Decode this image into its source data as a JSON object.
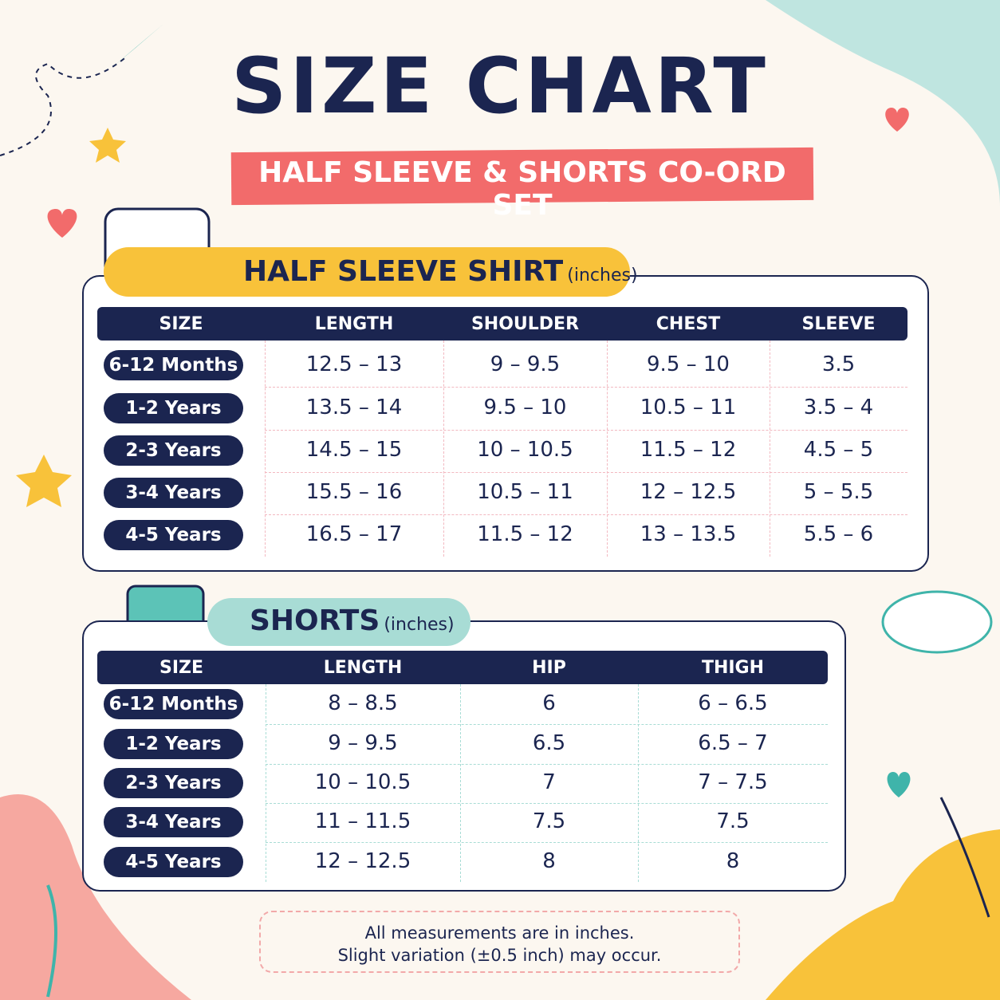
{
  "header": {
    "title": "SIZE CHART",
    "subtitle": "HALF SLEEVE & SHORTS CO-ORD SET"
  },
  "shirt_table": {
    "title": "HALF SLEEVE SHIRT",
    "unit": "(inches)",
    "columns": [
      "SIZE",
      "LENGTH",
      "SHOULDER",
      "CHEST",
      "SLEEVE"
    ],
    "rows": [
      [
        "6-12 Months",
        "12.5 – 13",
        "9 – 9.5",
        "9.5 – 10",
        "3.5"
      ],
      [
        "1-2 Years",
        "13.5 – 14",
        "9.5 – 10",
        "10.5 – 11",
        "3.5 – 4"
      ],
      [
        "2-3 Years",
        "14.5 – 15",
        "10 – 10.5",
        "11.5 – 12",
        "4.5 – 5"
      ],
      [
        "3-4 Years",
        "15.5 – 16",
        "10.5 – 11",
        "12 – 12.5",
        "5 – 5.5"
      ],
      [
        "4-5 Years",
        "16.5 – 17",
        "11.5 – 12",
        "13 – 13.5",
        "5.5 – 6"
      ]
    ]
  },
  "shorts_table": {
    "title": "SHORTS",
    "unit": "(inches)",
    "columns": [
      "SIZE",
      "LENGTH",
      "HIP",
      "THIGH"
    ],
    "rows": [
      [
        "6-12 Months",
        "8 – 8.5",
        "6",
        "6 – 6.5"
      ],
      [
        "1-2 Years",
        "9 – 9.5",
        "6.5",
        "6.5 – 7"
      ],
      [
        "2-3 Years",
        "10 – 10.5",
        "7",
        "7 – 7.5"
      ],
      [
        "3-4 Years",
        "11 – 11.5",
        "7.5",
        "7.5"
      ],
      [
        "4-5 Years",
        "12 – 12.5",
        "8",
        "8"
      ]
    ]
  },
  "footer": {
    "lines": [
      "All measurements are in inches.",
      "Slight variation (±0.5 inch) may occur."
    ]
  }
}
